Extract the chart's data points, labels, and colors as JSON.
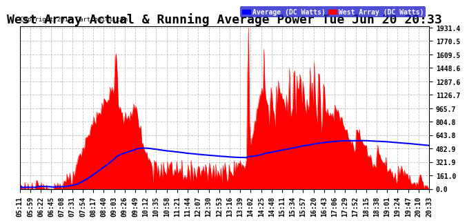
{
  "title": "West Array Actual & Running Average Power Tue Jun 20 20:33",
  "copyright": "Copyright 2017 Cartronics.com",
  "legend_average": "Average (DC Watts)",
  "legend_west": "West Array (DC Watts)",
  "ymax": 1931.4,
  "yticks": [
    0.0,
    161.0,
    321.9,
    482.9,
    643.8,
    804.8,
    965.7,
    1126.7,
    1287.6,
    1448.6,
    1609.5,
    1770.5,
    1931.4
  ],
  "background_color": "#ffffff",
  "plot_bg_color": "#ffffff",
  "grid_color": "#bbbbbb",
  "bar_color": "#ff0000",
  "avg_line_color": "#0000ff",
  "title_fontsize": 13,
  "tick_fontsize": 7,
  "xtick_labels": [
    "05:11",
    "05:59",
    "06:22",
    "06:45",
    "07:08",
    "07:31",
    "07:54",
    "08:17",
    "08:40",
    "09:03",
    "09:26",
    "09:49",
    "10:12",
    "10:35",
    "10:58",
    "11:21",
    "11:44",
    "12:07",
    "12:30",
    "12:53",
    "13:16",
    "13:39",
    "14:02",
    "14:25",
    "14:48",
    "15:11",
    "15:34",
    "15:57",
    "16:20",
    "16:43",
    "17:06",
    "17:29",
    "17:52",
    "18:15",
    "18:38",
    "19:01",
    "19:24",
    "19:47",
    "20:10",
    "20:33"
  ]
}
